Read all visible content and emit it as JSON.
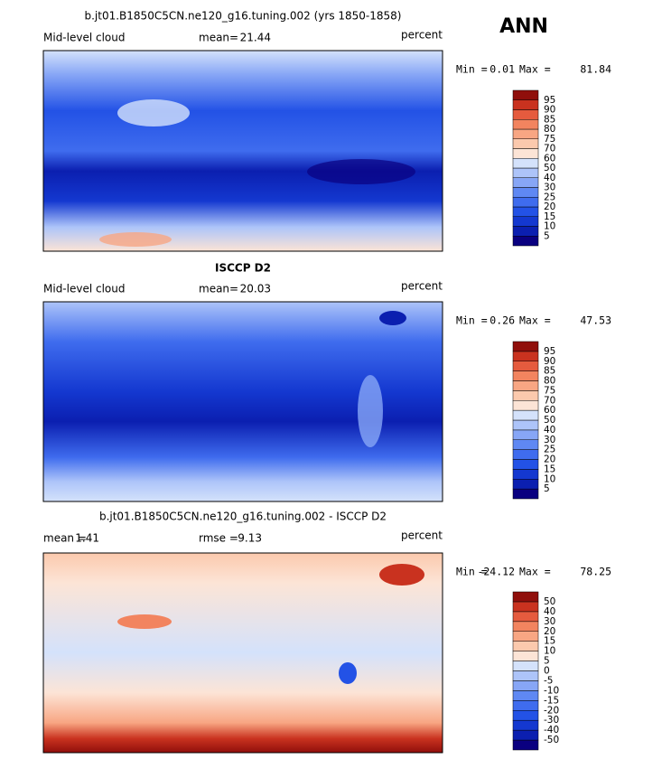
{
  "season": "ANN",
  "panels": [
    {
      "title": "b.jt01.B1850C5CN.ne120_g16.tuning.002 (yrs 1850-1858)",
      "left_label": "Mid-level cloud",
      "stats": [
        {
          "label": "mean=",
          "value": 21.44
        }
      ],
      "units": "percent",
      "min_label": "Min =",
      "min": 0.01,
      "max_label": "Max =",
      "max": 81.84,
      "levels": [
        5,
        10,
        15,
        20,
        25,
        30,
        40,
        50,
        60,
        70,
        75,
        80,
        85,
        90,
        95
      ],
      "colors": [
        "#0a0080",
        "#0b1fb0",
        "#1438d0",
        "#2352e6",
        "#3f6cee",
        "#5f88f3",
        "#87a6f6",
        "#adc4f9",
        "#d4e2fb",
        "#fce4d6",
        "#fbc9ad",
        "#f8a683",
        "#f2845f",
        "#e55b3e",
        "#c9321f",
        "#900f0b"
      ]
    },
    {
      "title": "ISCCP D2",
      "left_label": "Mid-level cloud",
      "stats": [
        {
          "label": "mean=",
          "value": 20.03
        }
      ],
      "units": "percent",
      "min_label": "Min =",
      "min": 0.26,
      "max_label": "Max =",
      "max": 47.53,
      "levels": [
        5,
        10,
        15,
        20,
        25,
        30,
        40,
        50,
        60,
        70,
        75,
        80,
        85,
        90,
        95
      ],
      "colors": [
        "#0a0080",
        "#0b1fb0",
        "#1438d0",
        "#2352e6",
        "#3f6cee",
        "#5f88f3",
        "#87a6f6",
        "#adc4f9",
        "#d4e2fb",
        "#fce4d6",
        "#fbc9ad",
        "#f8a683",
        "#f2845f",
        "#e55b3e",
        "#c9321f",
        "#900f0b"
      ]
    },
    {
      "title": "b.jt01.B1850C5CN.ne120_g16.tuning.002 - ISCCP D2",
      "left_label": null,
      "stats": [
        {
          "label": "mean =",
          "value": 1.41
        },
        {
          "label": "rmse =",
          "value": 9.13
        }
      ],
      "units": "percent",
      "min_label": "Min =",
      "min": -24.12,
      "max_label": "Max =",
      "max": 78.25,
      "levels": [
        -50,
        -40,
        -30,
        -20,
        -15,
        -10,
        -5,
        0,
        5,
        10,
        15,
        20,
        30,
        40,
        50
      ],
      "colors": [
        "#0a0080",
        "#0b1fb0",
        "#1438d0",
        "#2352e6",
        "#3f6cee",
        "#5f88f3",
        "#87a6f6",
        "#adc4f9",
        "#d4e2fb",
        "#fce4d6",
        "#fbc9ad",
        "#f8a683",
        "#f2845f",
        "#e55b3e",
        "#c9321f",
        "#900f0b"
      ]
    }
  ]
}
